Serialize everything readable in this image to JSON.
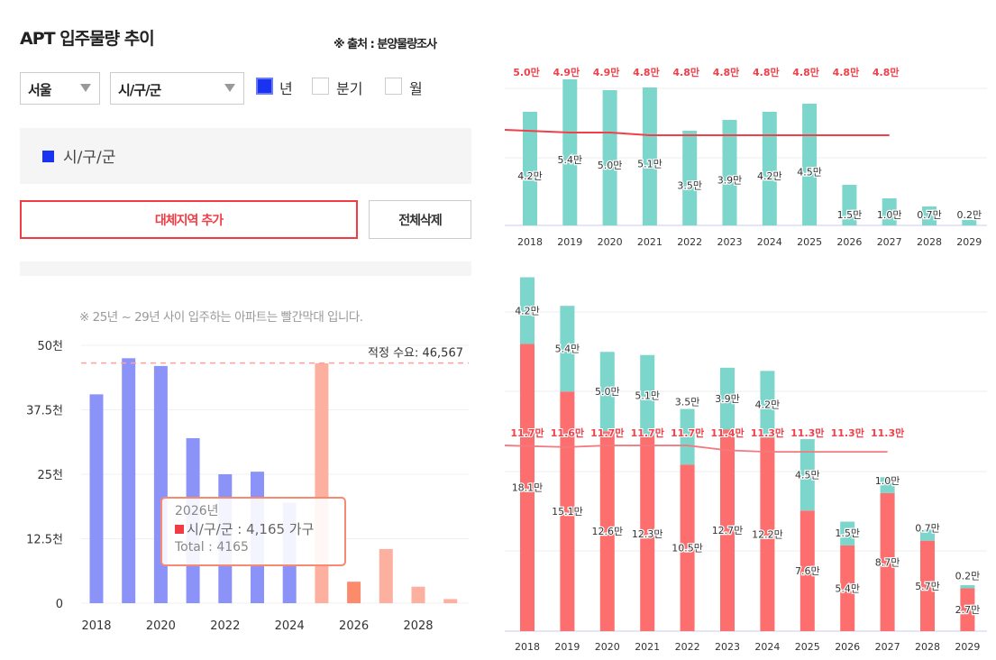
{
  "header": {
    "title": "APT 입주물량 추이",
    "source": "※ 출처 : 분양물량조사"
  },
  "filters": {
    "region": "서울",
    "district": "시/구/군",
    "period_options": [
      {
        "label": "년",
        "checked": true
      },
      {
        "label": "분기",
        "checked": false
      },
      {
        "label": "월",
        "checked": false
      }
    ]
  },
  "legend": {
    "label": "시/구/군",
    "color": "#1a33f0"
  },
  "buttons": {
    "add_region": "대체지역 추가",
    "delete_all": "전체삭제"
  },
  "note": "※ 25년 ~ 29년 사이 입주하는 아파트는 빨간막대 입니다.",
  "tooltip": {
    "title": "2026년",
    "series_line": "시/구/군 : 4,165 가구",
    "total_line": "Total : 4165"
  },
  "colors": {
    "past": "#8b93f8",
    "future": "#fdb0a0",
    "highlight": "#fc8b6c",
    "teal": "#7dd6cc",
    "red": "#fd6f6f",
    "line": "#f0404a"
  },
  "chart_data": [
    {
      "type": "bar",
      "categories": [
        "2018",
        "2019",
        "2020",
        "2021",
        "2022",
        "2023",
        "2024",
        "2025",
        "2026",
        "2027",
        "2028",
        "2029"
      ],
      "values": [
        40500,
        47500,
        46000,
        32000,
        25000,
        25500,
        19500,
        46500,
        4165,
        10500,
        3200,
        800
      ],
      "yticks": [
        "0",
        "12.5천",
        "25천",
        "37.5천",
        "50천"
      ],
      "xticks": [
        "2018",
        "2020",
        "2022",
        "2024",
        "2026",
        "2028"
      ],
      "ylim": [
        0,
        50000
      ],
      "reference_line": {
        "label": "적정 수요: 46,567",
        "value": 46567
      },
      "grid": true
    },
    {
      "type": "bar",
      "categories": [
        "2018",
        "2019",
        "2020",
        "2021",
        "2022",
        "2023",
        "2024",
        "2025",
        "2026",
        "2027",
        "2028",
        "2029"
      ],
      "values": [
        4.2,
        5.4,
        5.0,
        5.1,
        3.5,
        3.9,
        4.2,
        4.5,
        1.5,
        1.0,
        0.7,
        0.2
      ],
      "value_labels": [
        "4.2만",
        "5.4만",
        "5.0만",
        "5.1만",
        "3.5만",
        "3.9만",
        "4.2만",
        "4.5만",
        "1.5만",
        "1.0만",
        "0.7만",
        "0.2만"
      ],
      "line": {
        "values": [
          5.0,
          4.9,
          4.9,
          4.8,
          4.8,
          4.8,
          4.8,
          4.8,
          4.8,
          4.8
        ],
        "labels": [
          "5.0만",
          "4.9만",
          "4.9만",
          "4.8만",
          "4.8만",
          "4.8만",
          "4.8만",
          "4.8만",
          "4.8만",
          "4.8만"
        ]
      },
      "grid": true
    },
    {
      "type": "bar",
      "stacked": true,
      "categories": [
        "2018",
        "2019",
        "2020",
        "2021",
        "2022",
        "2023",
        "2024",
        "2025",
        "2026",
        "2027",
        "2028",
        "2029"
      ],
      "series": [
        {
          "values": [
            18.1,
            15.1,
            12.6,
            12.3,
            10.5,
            12.7,
            12.2,
            7.6,
            5.4,
            8.7,
            5.7,
            2.7
          ],
          "labels": [
            "18.1만",
            "15.1만",
            "12.6만",
            "12.3만",
            "10.5만",
            "12.7만",
            "12.2만",
            "7.6만",
            "5.4만",
            "8.7만",
            "5.7만",
            "2.7만"
          ]
        },
        {
          "values": [
            4.2,
            5.4,
            5.0,
            5.1,
            3.5,
            3.9,
            4.2,
            4.5,
            1.5,
            1.0,
            0.7,
            0.2
          ],
          "labels": [
            "4.2만",
            "5.4만",
            "5.0만",
            "5.1만",
            "3.5만",
            "3.9만",
            "4.2만",
            "4.5만",
            "1.5만",
            "1.0만",
            "0.7만",
            "0.2만"
          ]
        }
      ],
      "line": {
        "values": [
          11.7,
          11.6,
          11.7,
          11.7,
          11.7,
          11.4,
          11.3,
          11.3,
          11.3,
          11.3
        ],
        "labels": [
          "11.7만",
          "11.6만",
          "11.7만",
          "11.7만",
          "11.7만",
          "11.4만",
          "11.3만",
          "11.3만",
          "11.3만",
          "11.3만"
        ]
      },
      "grid": true
    }
  ]
}
